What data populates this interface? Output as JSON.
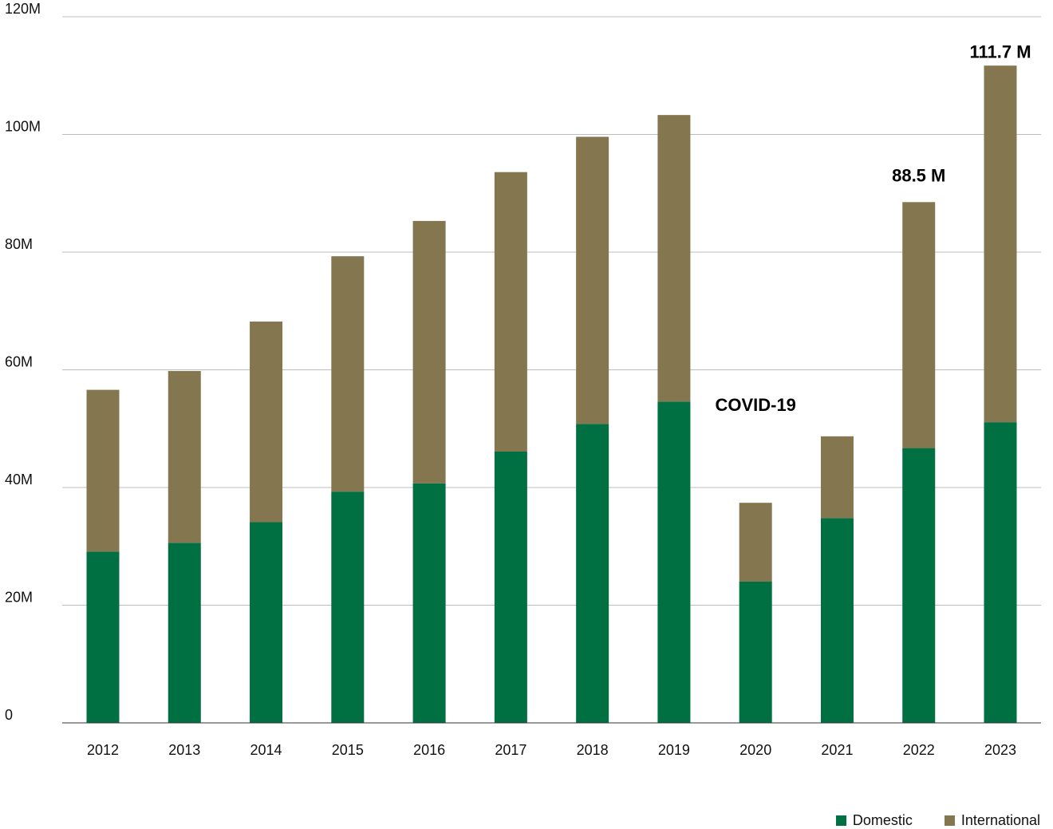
{
  "colors": {
    "domestic": "#006f41",
    "international": "#84774f",
    "grid": "#bdbdbd",
    "axis": "#333333"
  },
  "legend": {
    "domestic_label": "Domestic",
    "international_label": "International"
  },
  "chart_data": {
    "type": "bar",
    "stacked": true,
    "categories": [
      "2012",
      "2013",
      "2014",
      "2015",
      "2016",
      "2017",
      "2018",
      "2019",
      "2020",
      "2021",
      "2022",
      "2023"
    ],
    "series": [
      {
        "name": "Domestic",
        "values": [
          29.1,
          30.6,
          34.1,
          39.3,
          40.7,
          46.1,
          50.8,
          54.6,
          24.0,
          34.8,
          46.7,
          51.1
        ]
      },
      {
        "name": "International",
        "values": [
          27.5,
          29.2,
          34.1,
          40.0,
          44.6,
          47.5,
          48.8,
          48.7,
          13.4,
          13.9,
          41.8,
          60.6
        ]
      }
    ],
    "y_ticks": [
      "0",
      "20M",
      "40M",
      "60M",
      "80M",
      "100M",
      "120M"
    ],
    "ylim": [
      0,
      120
    ],
    "grid": true,
    "legend_position": "bottom-right",
    "annotations": [
      {
        "text": "COVID-19",
        "category": "2020",
        "y": 53
      },
      {
        "text": "88.5 M",
        "category": "2022",
        "y": 92
      },
      {
        "text": "111.7 M",
        "category": "2023",
        "y": 113
      }
    ]
  }
}
